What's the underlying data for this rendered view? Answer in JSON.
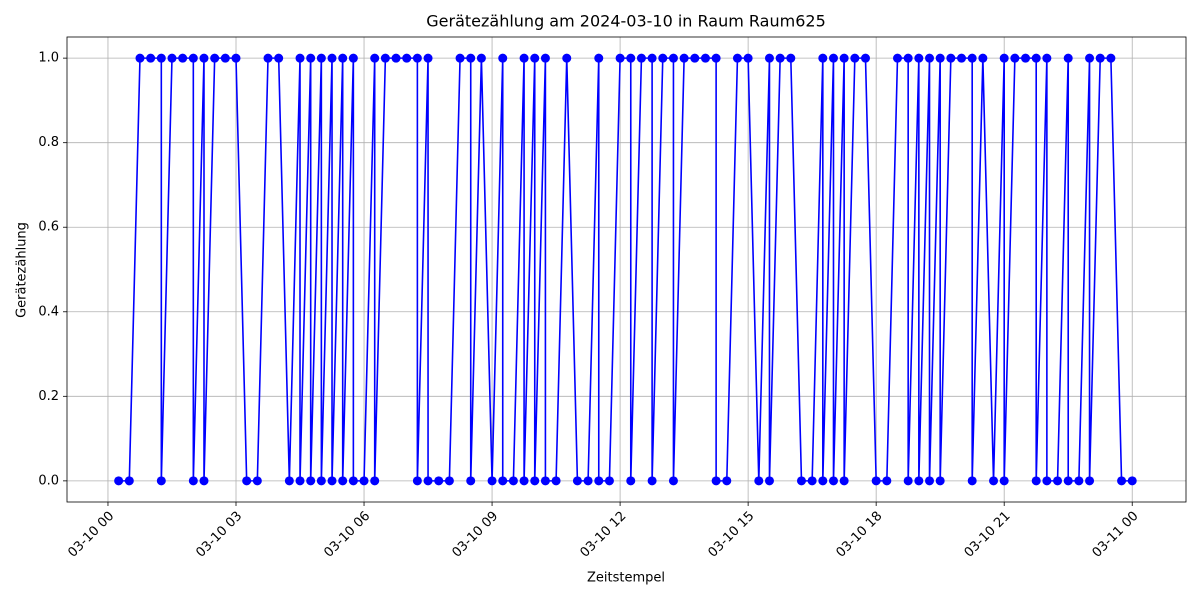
{
  "chart_data": {
    "type": "line",
    "title": "Gerätezählung am 2024-03-10 in Raum Raum625",
    "x_label": "Zeitstempel",
    "y_label": "Gerätezählung",
    "series": [
      {
        "color": "#0000ff",
        "x": [
          0.25,
          0.5,
          0.75,
          1,
          1.25,
          1.25,
          1.5,
          1.75,
          2,
          2,
          2.25,
          2.25,
          2.5,
          2.75,
          3,
          3.25,
          3.5,
          3.75,
          4,
          4.25,
          4.5,
          4.5,
          4.75,
          4.75,
          5,
          5,
          5.25,
          5.25,
          5.5,
          5.5,
          5.75,
          5.75,
          6,
          6.25,
          6.25,
          6.5,
          6.75,
          7,
          7.25,
          7.25,
          7.5,
          7.5,
          7.75,
          8,
          8.25,
          8.5,
          8.5,
          8.75,
          9,
          9.25,
          9.25,
          9.5,
          9.75,
          9.75,
          10,
          10,
          10.25,
          10.25,
          10.5,
          10.75,
          11,
          11.25,
          11.5,
          11.5,
          11.75,
          12,
          12.25,
          12.25,
          12.5,
          12.75,
          12.75,
          13,
          13.25,
          13.25,
          13.5,
          13.75,
          14,
          14.25,
          14.25,
          14.5,
          14.75,
          15,
          15.25,
          15.5,
          15.5,
          15.75,
          16,
          16.25,
          16.5,
          16.75,
          16.75,
          17,
          17,
          17.25,
          17.25,
          17.5,
          17.75,
          18,
          18.25,
          18.5,
          18.75,
          18.75,
          19,
          19,
          19.25,
          19.25,
          19.5,
          19.5,
          19.75,
          20,
          20.25,
          20.25,
          20.5,
          20.75,
          21,
          21,
          21.25,
          21.5,
          21.75,
          21.75,
          22,
          22,
          22.25,
          22.5,
          22.5,
          22.75,
          23,
          23,
          23.25,
          23.5,
          23.75,
          24
        ],
        "values": [
          0,
          0,
          1,
          1,
          1,
          0,
          1,
          1,
          1,
          0,
          1,
          0,
          1,
          1,
          1,
          0,
          0,
          1,
          1,
          0,
          1,
          0,
          1,
          0,
          1,
          0,
          1,
          0,
          1,
          0,
          1,
          0,
          0,
          1,
          0,
          1,
          1,
          1,
          1,
          0,
          1,
          0,
          0,
          0,
          1,
          1,
          0,
          1,
          0,
          1,
          0,
          0,
          1,
          0,
          1,
          0,
          1,
          0,
          0,
          1,
          0,
          0,
          1,
          0,
          0,
          1,
          1,
          0,
          1,
          1,
          0,
          1,
          1,
          0,
          1,
          1,
          1,
          1,
          0,
          0,
          1,
          1,
          0,
          1,
          0,
          1,
          1,
          0,
          0,
          1,
          0,
          1,
          0,
          1,
          0,
          1,
          1,
          0,
          0,
          1,
          1,
          0,
          1,
          0,
          1,
          0,
          1,
          0,
          1,
          1,
          1,
          0,
          1,
          0,
          1,
          0,
          1,
          1,
          1,
          0,
          1,
          0,
          0,
          1,
          0,
          0,
          1,
          0,
          1,
          1,
          0,
          0
        ]
      }
    ],
    "xlim": [
      -0.96,
      25.26
    ],
    "xticks": [
      {
        "value": 0,
        "label": "03-10 00"
      },
      {
        "value": 3,
        "label": "03-10 03"
      },
      {
        "value": 6,
        "label": "03-10 06"
      },
      {
        "value": 9,
        "label": "03-10 09"
      },
      {
        "value": 12,
        "label": "03-10 12"
      },
      {
        "value": 15,
        "label": "03-10 15"
      },
      {
        "value": 18,
        "label": "03-10 18"
      },
      {
        "value": 21,
        "label": "03-10 21"
      },
      {
        "value": 24,
        "label": "03-11 00"
      }
    ],
    "ylim": [
      -0.05,
      1.05
    ],
    "yticks": [
      {
        "value": 0,
        "label": "0.0"
      },
      {
        "value": 0.2,
        "label": "0.2"
      },
      {
        "value": 0.4,
        "label": "0.4"
      },
      {
        "value": 0.6,
        "label": "0.6"
      },
      {
        "value": 0.8,
        "label": "0.8"
      },
      {
        "value": 1,
        "label": "1.0"
      }
    ],
    "grid": true
  }
}
